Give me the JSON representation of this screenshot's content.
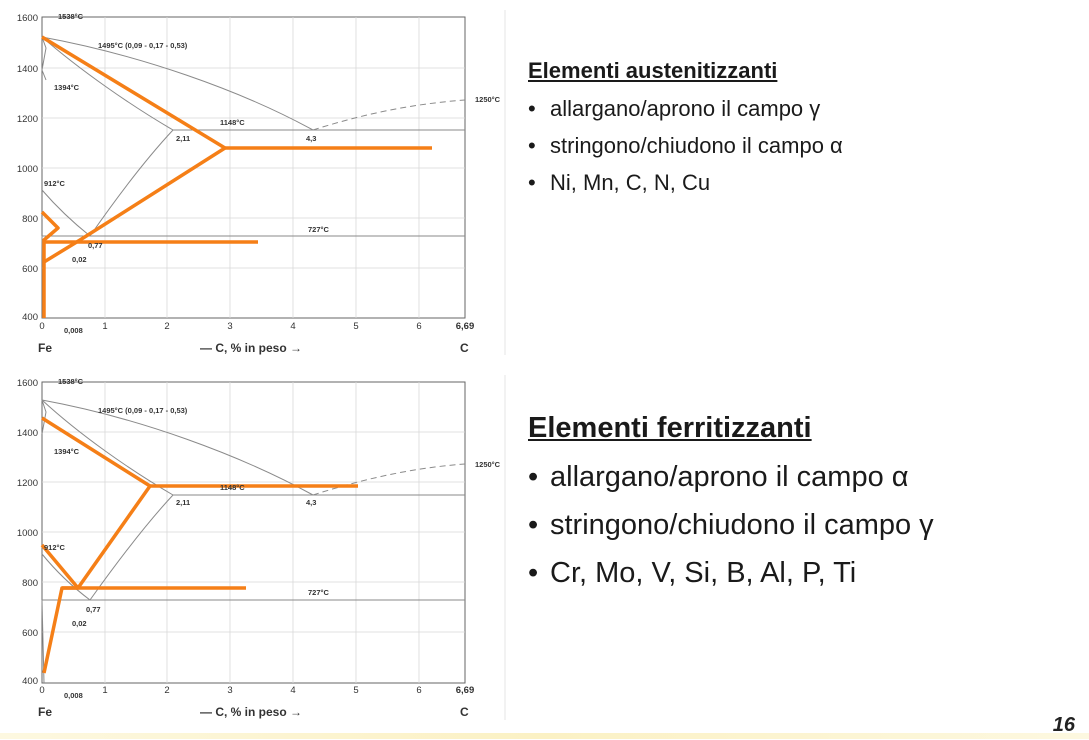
{
  "diagrams": [
    {
      "id": "top",
      "y_ticks": [
        "1600",
        "1400",
        "1200",
        "1000",
        "800",
        "600",
        "400"
      ],
      "x_ticks": [
        "0",
        "1",
        "2",
        "3",
        "4",
        "5",
        "6",
        "6,69"
      ],
      "labels": {
        "t1538": "1538°C",
        "t1495": "1495°C (0,09 - 0,17 - 0,53)",
        "t1394": "1394°C",
        "t1250": "1250°C",
        "t1148": "1148°C",
        "c211": "2,11",
        "c43": "4,3",
        "t912": "912°C",
        "t727": "727°C",
        "c077": "0,77",
        "c002": "0,02",
        "c0008": "0,008",
        "fe": "Fe",
        "axis": "— C, % in peso →",
        "c": "C"
      }
    },
    {
      "id": "bottom",
      "y_ticks": [
        "1600",
        "1400",
        "1200",
        "1000",
        "800",
        "600",
        "400"
      ],
      "x_ticks": [
        "0",
        "1",
        "2",
        "3",
        "4",
        "5",
        "6",
        "6,69"
      ],
      "labels": {
        "t1538": "1538°C",
        "t1495": "1495°C (0,09 - 0,17 - 0,53)",
        "t1394": "1394°C",
        "t1250": "1250°C",
        "t1148": "1148°C",
        "c211": "2,11",
        "c43": "4,3",
        "t912": "912°C",
        "t727": "727°C",
        "c077": "0,77",
        "c002": "0,02",
        "c0008": "0,008",
        "fe": "Fe",
        "axis": "— C, % in peso →",
        "c": "C"
      }
    }
  ],
  "austenitizing": {
    "title": "Elementi austenitizzanti",
    "bullets": [
      "allargano/aprono il campo γ",
      "stringono/chiudono il campo α",
      "Ni, Mn, C, N, Cu"
    ]
  },
  "ferritizing": {
    "title": "Elementi ferritizzanti",
    "bullets": [
      "allargano/aprono il campo α",
      "stringono/chiudono il campo γ",
      "Cr, Mo, V, Si, B, Al, P, Ti"
    ]
  },
  "bullet_char": "•",
  "page_number": "16",
  "colors": {
    "overlay": "#f57f17",
    "diagram_line": "#8a8a8a",
    "frame": "#555555"
  }
}
